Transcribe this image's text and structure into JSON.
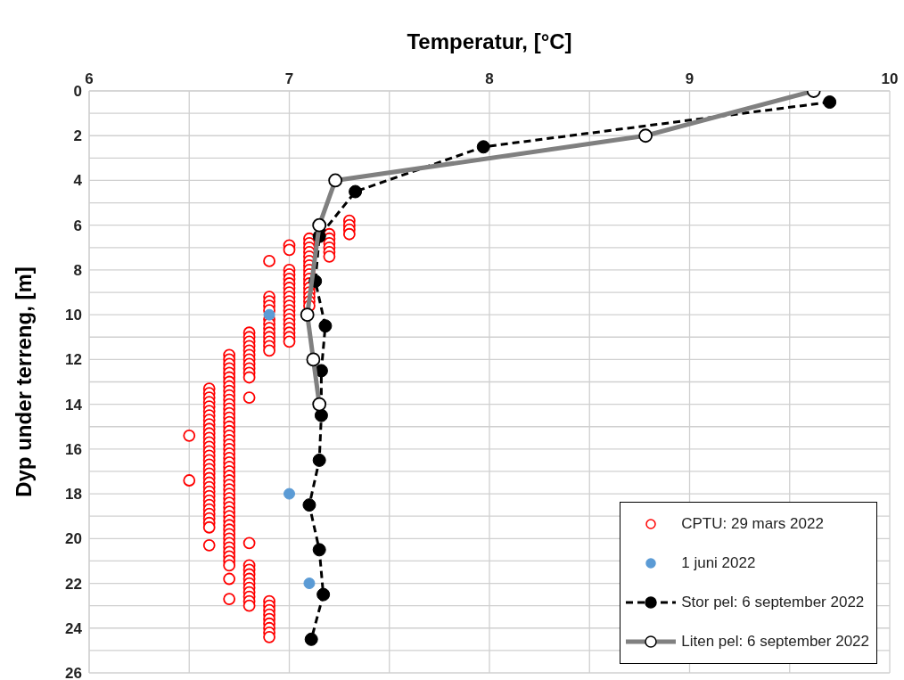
{
  "chart_data": {
    "type": "scatter",
    "xlabel": "Temperatur, [°C]",
    "ylabel": "Dyp under terreng, [m]",
    "xlim": [
      6,
      10
    ],
    "xticks": [
      6,
      {
        "value": 6.5,
        "label": null
      },
      7,
      {
        "value": 7.5,
        "label": null
      },
      8,
      {
        "value": 8.5,
        "label": null
      },
      9,
      {
        "value": 9.5,
        "label": null
      },
      10
    ],
    "ylim": [
      26,
      0
    ],
    "yticks": [
      0,
      {
        "value": 1,
        "label": null
      },
      2,
      {
        "value": 3,
        "label": null
      },
      4,
      {
        "value": 5,
        "label": null
      },
      6,
      {
        "value": 7,
        "label": null
      },
      8,
      {
        "value": 9,
        "label": null
      },
      10,
      {
        "value": 11,
        "label": null
      },
      12,
      {
        "value": 13,
        "label": null
      },
      14,
      {
        "value": 15,
        "label": null
      },
      16,
      {
        "value": 17,
        "label": null
      },
      18,
      {
        "value": 19,
        "label": null
      },
      20,
      {
        "value": 21,
        "label": null
      },
      22,
      {
        "value": 23,
        "label": null
      },
      24,
      {
        "value": 25,
        "label": null
      },
      26
    ],
    "grid": true,
    "legend": "bottom right",
    "marker": "circle",
    "series": [
      {
        "name": "CPTU: 29 mars 2022",
        "type": "scatter",
        "color": "#ff0000",
        "x": [
          7.3,
          7.3,
          7.3,
          7.3,
          7.2,
          7.2,
          7.2,
          7.2,
          7.2,
          7.2,
          7.1,
          7.1,
          7.1,
          7.1,
          7.1,
          7.1,
          7.1,
          7.1,
          7.1,
          7.1,
          7.1,
          7.1,
          7.1,
          7.1,
          7.1,
          7.1,
          7.0,
          7.0,
          7.0,
          7.0,
          7.0,
          7.0,
          7.0,
          7.0,
          7.0,
          7.0,
          7.0,
          7.0,
          7.0,
          7.0,
          7.0,
          7.0,
          7.0,
          7.0,
          7.0,
          6.9,
          6.9,
          6.9,
          6.9,
          6.9,
          6.9,
          6.9,
          6.9,
          6.9,
          6.9,
          6.9,
          6.9,
          6.9,
          6.8,
          6.8,
          6.8,
          6.8,
          6.8,
          6.8,
          6.8,
          6.8,
          6.8,
          6.8,
          6.8,
          6.8,
          6.8,
          6.8,
          6.8,
          6.8,
          6.8,
          6.8,
          6.8,
          6.8,
          6.8,
          6.8,
          6.8,
          6.7,
          6.7,
          6.7,
          6.7,
          6.7,
          6.7,
          6.7,
          6.7,
          6.7,
          6.7,
          6.7,
          6.7,
          6.7,
          6.7,
          6.7,
          6.7,
          6.7,
          6.7,
          6.7,
          6.7,
          6.7,
          6.7,
          6.7,
          6.7,
          6.7,
          6.7,
          6.7,
          6.7,
          6.7,
          6.7,
          6.7,
          6.7,
          6.7,
          6.7,
          6.7,
          6.7,
          6.7,
          6.7,
          6.7,
          6.7,
          6.7,
          6.7,
          6.7,
          6.7,
          6.7,
          6.7,
          6.7,
          6.7,
          6.7,
          6.7,
          6.6,
          6.6,
          6.6,
          6.6,
          6.6,
          6.6,
          6.6,
          6.6,
          6.6,
          6.6,
          6.6,
          6.6,
          6.6,
          6.6,
          6.6,
          6.6,
          6.6,
          6.6,
          6.6,
          6.6,
          6.6,
          6.6,
          6.6,
          6.6,
          6.6,
          6.6,
          6.6,
          6.6,
          6.6,
          6.6,
          6.6,
          6.6,
          6.6,
          6.5,
          6.5,
          6.9,
          6.9,
          6.9,
          6.9,
          6.9,
          6.9,
          6.9,
          6.9,
          6.9
        ],
        "values": [
          5.8,
          6.0,
          6.2,
          6.4,
          6.4,
          6.6,
          6.8,
          7.0,
          7.2,
          7.4,
          6.6,
          6.8,
          7.0,
          7.2,
          7.4,
          7.6,
          7.8,
          8.0,
          8.2,
          8.4,
          8.6,
          8.8,
          9.0,
          9.2,
          9.4,
          9.6,
          6.9,
          7.1,
          8.0,
          8.2,
          8.4,
          8.6,
          8.8,
          9.0,
          9.2,
          9.4,
          9.6,
          9.8,
          10.0,
          10.2,
          10.4,
          10.6,
          10.8,
          11.0,
          11.2,
          7.6,
          9.2,
          9.4,
          9.6,
          9.8,
          10.2,
          10.4,
          10.6,
          10.8,
          11.0,
          11.2,
          11.4,
          11.6,
          10.8,
          11.0,
          11.2,
          11.4,
          11.6,
          11.8,
          12.0,
          12.2,
          12.4,
          12.6,
          12.8,
          13.7,
          20.2,
          21.2,
          21.4,
          21.6,
          21.8,
          22.0,
          22.2,
          22.4,
          22.6,
          22.8,
          23.0,
          11.8,
          12.0,
          12.2,
          12.4,
          12.6,
          12.8,
          13.0,
          13.2,
          13.4,
          13.6,
          13.8,
          14.0,
          14.2,
          14.4,
          14.6,
          14.8,
          15.0,
          15.2,
          15.4,
          15.6,
          15.8,
          16.0,
          16.2,
          16.4,
          16.6,
          16.8,
          17.0,
          17.2,
          17.4,
          17.6,
          17.8,
          18.0,
          18.2,
          18.4,
          18.6,
          18.8,
          19.0,
          19.2,
          19.4,
          19.6,
          19.8,
          20.0,
          20.2,
          20.4,
          20.6,
          20.8,
          21.0,
          21.2,
          21.8,
          22.7,
          13.3,
          13.5,
          13.7,
          13.9,
          14.1,
          14.3,
          14.5,
          14.7,
          14.9,
          15.1,
          15.3,
          15.5,
          15.7,
          15.9,
          16.1,
          16.3,
          16.5,
          16.7,
          16.9,
          17.1,
          17.3,
          17.5,
          17.7,
          17.9,
          18.1,
          18.3,
          18.5,
          18.7,
          18.9,
          19.1,
          19.3,
          19.5,
          20.3,
          15.4,
          17.4,
          22.8,
          23.0,
          23.2,
          23.4,
          23.6,
          23.8,
          24.0,
          24.2,
          24.4
        ]
      },
      {
        "name": "1 juni 2022",
        "type": "scatter",
        "color": "#5b9bd5",
        "x": [
          6.9,
          7.0,
          7.1
        ],
        "values": [
          10,
          18,
          22
        ]
      },
      {
        "name": "Stor pel: 6 september 2022",
        "type": "line",
        "line_style": "dashed",
        "color": "#000000",
        "x": [
          9.7,
          7.97,
          7.33,
          7.15,
          7.13,
          7.18,
          7.16,
          7.16,
          7.15,
          7.1,
          7.15,
          7.17,
          7.11
        ],
        "values": [
          0.5,
          2.5,
          4.5,
          6.5,
          8.5,
          10.5,
          12.5,
          14.5,
          16.5,
          18.5,
          20.5,
          22.5,
          24.5
        ]
      },
      {
        "name": "Liten pel: 6 september 2022",
        "type": "line",
        "line_style": "solid",
        "color": "#808080",
        "x": [
          9.62,
          8.78,
          7.23,
          7.15,
          7.09,
          7.12,
          7.15
        ],
        "values": [
          0,
          2,
          4,
          6,
          10,
          12,
          14
        ]
      }
    ]
  }
}
